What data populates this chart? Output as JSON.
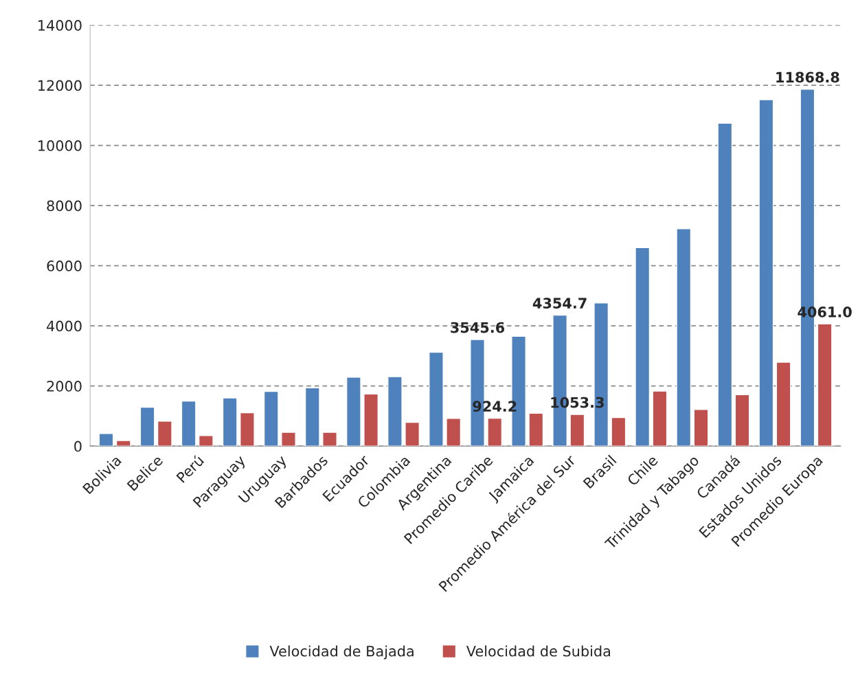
{
  "chart_data": {
    "type": "bar",
    "categories": [
      "Bolivia",
      "Belice",
      "Perú",
      "Paraguay",
      "Uruguay",
      "Barbados",
      "Ecuador",
      "Colombia",
      "Argentina",
      "Promedio Caribe",
      "Jamaica",
      "Promedio América del Sur",
      "Brasil",
      "Chile",
      "Trinidad y Tabago",
      "Canadá",
      "Estados Unidos",
      "Promedio Europa"
    ],
    "series": [
      {
        "name": "Velocidad de Bajada",
        "color": "#4f81bd",
        "values": [
          420,
          1290,
          1500,
          1600,
          1820,
          1940,
          2290,
          2310,
          3120,
          3545.6,
          3650,
          4354.7,
          4760,
          6600,
          7230,
          10740,
          11520,
          11868.8
        ],
        "value_labels": [
          null,
          null,
          null,
          null,
          null,
          null,
          null,
          null,
          null,
          "3545.6",
          null,
          "4354.7",
          null,
          null,
          null,
          null,
          null,
          "11868.8"
        ]
      },
      {
        "name": "Velocidad de Subida",
        "color": "#c0504d",
        "values": [
          185,
          830,
          350,
          1110,
          460,
          460,
          1730,
          790,
          920,
          924.2,
          1090,
          1053.3,
          950,
          1830,
          1220,
          1710,
          2790,
          4061.0
        ],
        "value_labels": [
          null,
          null,
          null,
          null,
          null,
          null,
          null,
          null,
          null,
          "924.2",
          null,
          "1053.3",
          null,
          null,
          null,
          null,
          null,
          "4061.0"
        ]
      }
    ],
    "ylim": [
      0,
      14000
    ],
    "yticks": [
      0,
      2000,
      4000,
      6000,
      8000,
      10000,
      12000,
      14000
    ],
    "grid": "y",
    "legend": "bottom"
  }
}
